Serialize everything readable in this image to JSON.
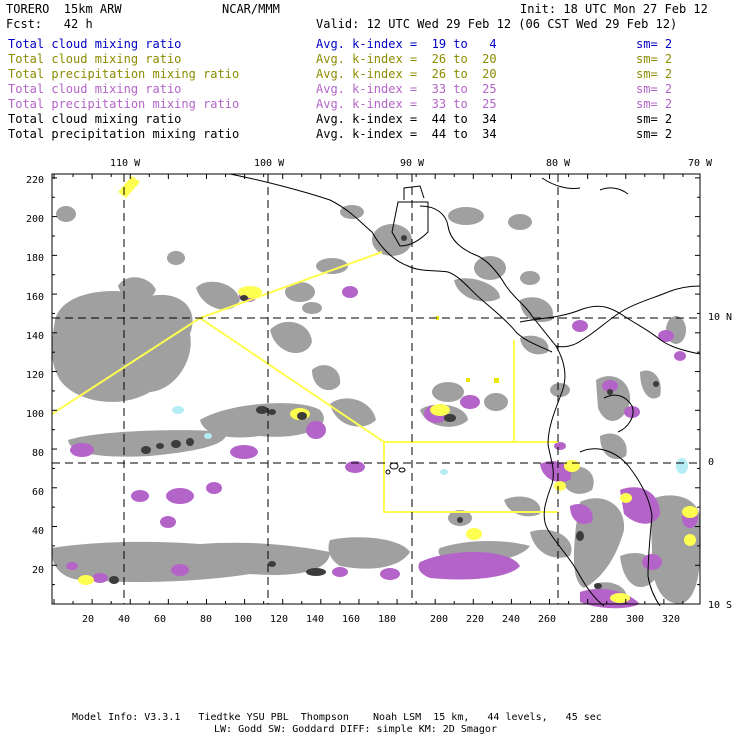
{
  "header": {
    "model": "TORERO  15km ARW",
    "org": "NCAR/MMM",
    "init": "Init: 18 UTC Mon 27 Feb 12",
    "fcst": "Fcst:   42 h",
    "valid": "Valid: 12 UTC Wed 29 Feb 12 (06 CST Wed 29 Feb 12)"
  },
  "legend": [
    {
      "label": "Total cloud mixing ratio",
      "index": "Avg. k-index =  19 to   4",
      "sm": "sm= 2",
      "color": "#0000c8"
    },
    {
      "label": "Total cloud mixing ratio",
      "index": "Avg. k-index =  26 to  20",
      "sm": "sm= 2",
      "color": "#8c8c00"
    },
    {
      "label": "Total precipitation mixing ratio",
      "index": "Avg. k-index =  26 to  20",
      "sm": "sm= 2",
      "color": "#8c8c00"
    },
    {
      "label": "Total cloud mixing ratio",
      "index": "Avg. k-index =  33 to  25",
      "sm": "sm= 2",
      "color": "#b464c8"
    },
    {
      "label": "Total precipitation mixing ratio",
      "index": "Avg. k-index =  33 to  25",
      "sm": "sm= 2",
      "color": "#b464c8"
    },
    {
      "label": "Total cloud mixing ratio",
      "index": "Avg. k-index =  44 to  34",
      "sm": "sm= 2",
      "color": "#000000"
    },
    {
      "label": "Total precipitation mixing ratio",
      "index": "Avg. k-index =  44 to  34",
      "sm": "sm= 2",
      "color": "#000000"
    }
  ],
  "axes": {
    "lon_labels": [
      "110 W",
      "100 W",
      "90 W",
      "80 W",
      "70 W"
    ],
    "lat_labels": [
      "10 N",
      "0",
      "10 S"
    ],
    "y_ticks": [
      "220",
      "200",
      "180",
      "160",
      "140",
      "120",
      "100",
      "80",
      "60",
      "40",
      "20"
    ],
    "x_ticks": [
      "20",
      "40",
      "60",
      "80",
      "100",
      "120",
      "140",
      "160",
      "180",
      "200",
      "220",
      "240",
      "260",
      "280",
      "300",
      "320"
    ]
  },
  "footer": {
    "line1": "Model Info: V3.3.1   Tiedtke YSU PBL  Thompson    Noah LSM  15 km,   44 levels,   45 sec",
    "line2": "LW: Godd SW: Goddard DIFF: simple KM: 2D Smagor"
  },
  "colors": {
    "gray": "#a0a0a0",
    "dark": "#3c3c3c",
    "purple": "#b464c8",
    "yellow": "#ffff50",
    "cyan": "#b4ecf4"
  }
}
